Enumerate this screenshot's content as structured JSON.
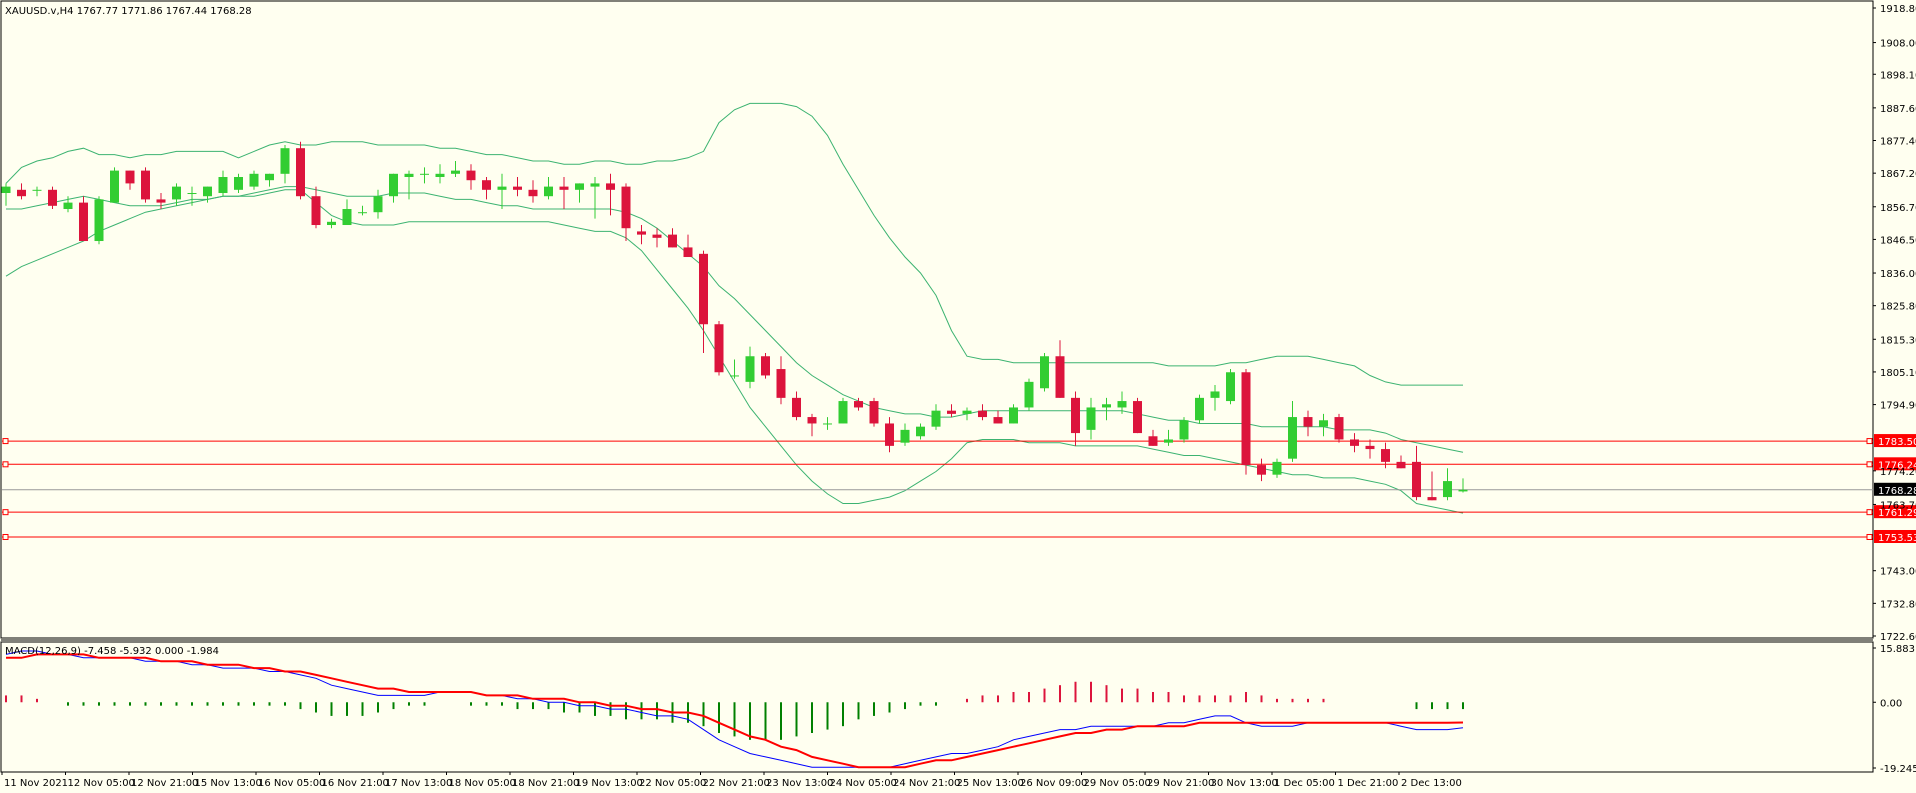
{
  "header": {
    "symbol_info": "XAUUSD.v,H4  1767.77 1771.86 1767.44 1768.28",
    "macd_info": "MACD(12,26,9) -7.458 -5.932 0.000 -1.984"
  },
  "colors": {
    "background": "#fffff0",
    "bull": "#32cd32",
    "bear": "#dc143c",
    "band": "#3cb371",
    "level_line": "#ff0000",
    "macd_main": "#0000ff",
    "macd_signal": "#ff0000",
    "hist_up": "#dc143c",
    "hist_down": "#008000"
  },
  "chart_data": [
    {
      "type": "candlestick",
      "title": "XAUUSD.v,H4",
      "ylim": [
        1722.6,
        1918.8
      ],
      "y_ticks": [
        "1918.80",
        "1908.00",
        "1898.10",
        "1887.60",
        "1877.40",
        "1867.20",
        "1856.70",
        "1846.50",
        "1836.00",
        "1825.80",
        "1815.30",
        "1805.10",
        "1794.90",
        "1774.20",
        "1763.70",
        "1743.00",
        "1732.80",
        "1722.60"
      ],
      "x_ticks": [
        "11 Nov 2021",
        "12 Nov 05:00",
        "12 Nov 21:00",
        "15 Nov 13:00",
        "16 Nov 05:00",
        "16 Nov 21:00",
        "17 Nov 13:00",
        "18 Nov 05:00",
        "18 Nov 21:00",
        "19 Nov 13:00",
        "22 Nov 05:00",
        "22 Nov 21:00",
        "23 Nov 13:00",
        "24 Nov 05:00",
        "24 Nov 21:00",
        "25 Nov 13:00",
        "26 Nov 09:00",
        "29 Nov 05:00",
        "29 Nov 21:00",
        "30 Nov 13:00",
        "1 Dec 05:00",
        "1 Dec 21:00",
        "2 Dec 13:00"
      ],
      "candles": [
        [
          1861,
          1864,
          1857,
          1863
        ],
        [
          1862,
          1864,
          1859,
          1860
        ],
        [
          1862,
          1863,
          1860,
          1862
        ],
        [
          1862,
          1863,
          1856,
          1857
        ],
        [
          1856,
          1860,
          1855,
          1858
        ],
        [
          1858,
          1860,
          1847,
          1846
        ],
        [
          1846,
          1860,
          1845,
          1859
        ],
        [
          1858,
          1869,
          1858,
          1868
        ],
        [
          1868,
          1868,
          1862,
          1864
        ],
        [
          1868,
          1869,
          1858,
          1859
        ],
        [
          1859,
          1861,
          1856,
          1858
        ],
        [
          1859,
          1864,
          1857,
          1863
        ],
        [
          1861,
          1863,
          1857,
          1861
        ],
        [
          1860,
          1863,
          1858,
          1863
        ],
        [
          1861,
          1868,
          1860,
          1866
        ],
        [
          1862,
          1867,
          1861,
          1866
        ],
        [
          1863,
          1868,
          1862,
          1867
        ],
        [
          1865,
          1867,
          1863,
          1867
        ],
        [
          1867,
          1876,
          1864,
          1875
        ],
        [
          1875,
          1877,
          1859,
          1860
        ],
        [
          1860,
          1863,
          1850,
          1851
        ],
        [
          1851,
          1853,
          1850,
          1852
        ],
        [
          1851,
          1859,
          1851,
          1856
        ],
        [
          1855,
          1857,
          1854,
          1855
        ],
        [
          1855,
          1862,
          1853,
          1860
        ],
        [
          1860,
          1867,
          1858,
          1867
        ],
        [
          1866,
          1868,
          1859,
          1867
        ],
        [
          1867,
          1869,
          1864,
          1867
        ],
        [
          1866,
          1870,
          1864,
          1867
        ],
        [
          1867,
          1871,
          1866,
          1868
        ],
        [
          1868,
          1870,
          1862,
          1865
        ],
        [
          1865,
          1866,
          1859,
          1862
        ],
        [
          1862,
          1867,
          1856,
          1863
        ],
        [
          1863,
          1866,
          1860,
          1862
        ],
        [
          1862,
          1865,
          1858,
          1860
        ],
        [
          1860,
          1866,
          1859,
          1863
        ],
        [
          1863,
          1866,
          1856,
          1862
        ],
        [
          1862,
          1864,
          1858,
          1864
        ],
        [
          1863,
          1866,
          1853,
          1864
        ],
        [
          1864,
          1867,
          1854,
          1862
        ],
        [
          1863,
          1864,
          1846,
          1850
        ],
        [
          1849,
          1851,
          1845,
          1848
        ],
        [
          1848,
          1850,
          1844,
          1847
        ],
        [
          1848,
          1850,
          1844,
          1844
        ],
        [
          1844,
          1848,
          1841,
          1841
        ],
        [
          1842,
          1843,
          1811,
          1820
        ],
        [
          1820,
          1821,
          1804,
          1805
        ],
        [
          1804,
          1809,
          1803,
          1804
        ],
        [
          1802,
          1813,
          1800,
          1810
        ],
        [
          1810,
          1811,
          1803,
          1804
        ],
        [
          1806,
          1810,
          1795,
          1797
        ],
        [
          1797,
          1799,
          1790,
          1791
        ],
        [
          1791,
          1792,
          1785,
          1789
        ],
        [
          1789,
          1791,
          1787,
          1789
        ],
        [
          1789,
          1797,
          1789,
          1796
        ],
        [
          1796,
          1797,
          1793,
          1794
        ],
        [
          1796,
          1797,
          1788,
          1789
        ],
        [
          1789,
          1791,
          1780,
          1782
        ],
        [
          1783,
          1789,
          1782,
          1787
        ],
        [
          1785,
          1789,
          1784,
          1788
        ],
        [
          1788,
          1795,
          1787,
          1793
        ],
        [
          1793,
          1795,
          1791,
          1792
        ],
        [
          1792,
          1794,
          1790,
          1793
        ],
        [
          1793,
          1795,
          1790,
          1791
        ],
        [
          1791,
          1793,
          1789,
          1789
        ],
        [
          1789,
          1795,
          1789,
          1794
        ],
        [
          1794,
          1803,
          1793,
          1802
        ],
        [
          1800,
          1811,
          1799,
          1810
        ],
        [
          1810,
          1815,
          1797,
          1797
        ],
        [
          1797,
          1799,
          1782,
          1786
        ],
        [
          1787,
          1797,
          1784,
          1794
        ],
        [
          1794,
          1797,
          1790,
          1795
        ],
        [
          1794,
          1799,
          1792,
          1796
        ],
        [
          1796,
          1797,
          1786,
          1786
        ],
        [
          1785,
          1787,
          1782,
          1782
        ],
        [
          1783,
          1787,
          1782,
          1784
        ],
        [
          1784,
          1791,
          1783,
          1790
        ],
        [
          1790,
          1798,
          1789,
          1797
        ],
        [
          1797,
          1801,
          1793,
          1799
        ],
        [
          1796,
          1806,
          1795,
          1805
        ],
        [
          1805,
          1806,
          1773,
          1776
        ],
        [
          1776,
          1778,
          1771,
          1773
        ],
        [
          1773,
          1778,
          1772,
          1777
        ],
        [
          1778,
          1796,
          1777,
          1791
        ],
        [
          1791,
          1793,
          1785,
          1788
        ],
        [
          1788,
          1792,
          1785,
          1790
        ],
        [
          1791,
          1792,
          1783,
          1784
        ],
        [
          1784,
          1786,
          1780,
          1782
        ],
        [
          1782,
          1784,
          1778,
          1781
        ],
        [
          1781,
          1783,
          1775,
          1777
        ],
        [
          1777,
          1779,
          1775,
          1775
        ],
        [
          1777,
          1782,
          1765,
          1766
        ],
        [
          1766,
          1774,
          1765,
          1765
        ],
        [
          1766,
          1775,
          1765,
          1771
        ],
        [
          1767.77,
          1771.86,
          1767.44,
          1768.28
        ]
      ],
      "bollinger": {
        "upper": [
          1864,
          1869,
          1871,
          1872,
          1874,
          1875,
          1873,
          1873,
          1872,
          1873,
          1873,
          1874,
          1874,
          1874,
          1874,
          1872,
          1874,
          1876,
          1877,
          1876,
          1876,
          1877,
          1877,
          1877,
          1876,
          1876,
          1876,
          1876,
          1875,
          1875,
          1874,
          1873,
          1873,
          1872,
          1871,
          1871,
          1870,
          1870,
          1871,
          1871,
          1870,
          1870,
          1871,
          1871,
          1872,
          1874,
          1883,
          1887,
          1889,
          1889,
          1889,
          1888,
          1885,
          1879,
          1870,
          1862,
          1854,
          1847,
          1841,
          1836,
          1829,
          1818,
          1810,
          1809,
          1809,
          1808,
          1808,
          1808,
          1808,
          1808,
          1808,
          1808,
          1808,
          1808,
          1808,
          1807,
          1807,
          1807,
          1807,
          1808,
          1808,
          1809,
          1810,
          1810,
          1810,
          1809,
          1808,
          1807,
          1804,
          1802,
          1801,
          1801,
          1801,
          1801,
          1801
        ],
        "middle": [
          1856,
          1856,
          1857,
          1858,
          1859,
          1860,
          1859,
          1858,
          1857,
          1857,
          1857,
          1858,
          1859,
          1859,
          1860,
          1860,
          1861,
          1862,
          1863,
          1863,
          1862,
          1861,
          1860,
          1860,
          1860,
          1861,
          1861,
          1861,
          1860,
          1859,
          1859,
          1858,
          1857,
          1857,
          1856,
          1856,
          1856,
          1856,
          1856,
          1856,
          1855,
          1853,
          1850,
          1846,
          1842,
          1838,
          1832,
          1828,
          1823,
          1818,
          1813,
          1808,
          1804,
          1801,
          1798,
          1796,
          1794,
          1793,
          1792,
          1792,
          1791,
          1791,
          1792,
          1793,
          1793,
          1793,
          1793,
          1793,
          1793,
          1793,
          1793,
          1793,
          1793,
          1792,
          1791,
          1790,
          1790,
          1789,
          1789,
          1789,
          1789,
          1788,
          1788,
          1788,
          1788,
          1788,
          1787,
          1787,
          1787,
          1786,
          1784,
          1783,
          1782,
          1781,
          1780
        ],
        "lower": [
          1835,
          1838,
          1840,
          1842,
          1844,
          1846,
          1849,
          1851,
          1853,
          1855,
          1856,
          1857,
          1858,
          1859,
          1860,
          1860,
          1860,
          1861,
          1862,
          1862,
          1858,
          1854,
          1852,
          1851,
          1851,
          1851,
          1852,
          1852,
          1852,
          1852,
          1852,
          1852,
          1852,
          1852,
          1852,
          1852,
          1851,
          1850,
          1849,
          1849,
          1847,
          1843,
          1837,
          1831,
          1825,
          1818,
          1810,
          1802,
          1794,
          1788,
          1782,
          1776,
          1771,
          1767,
          1764,
          1764,
          1765,
          1766,
          1768,
          1771,
          1774,
          1778,
          1783,
          1784,
          1784,
          1784,
          1783,
          1783,
          1783,
          1782,
          1782,
          1782,
          1782,
          1782,
          1781,
          1780,
          1779,
          1779,
          1778,
          1777,
          1776,
          1775,
          1774,
          1773,
          1773,
          1772,
          1772,
          1772,
          1771,
          1770,
          1768,
          1764,
          1763,
          1762,
          1761
        ]
      },
      "horizontal_levels": [
        {
          "value": 1783.5,
          "label": "1783.50",
          "color": "#ff0000"
        },
        {
          "value": 1776.24,
          "label": "1776.24",
          "color": "#ff0000"
        },
        {
          "value": 1761.29,
          "label": "1761.29",
          "color": "#ff0000"
        },
        {
          "value": 1753.53,
          "label": "1753.53",
          "color": "#ff0000"
        }
      ],
      "current_price": {
        "value": 1768.28,
        "label": "1768.28"
      }
    },
    {
      "type": "macd",
      "ylim": [
        -19.245,
        15.883
      ],
      "y_ticks": [
        "15.883",
        "0.00",
        "-19.245"
      ],
      "histogram": [
        2,
        2,
        1,
        0,
        -1,
        -1,
        -1,
        -1,
        -1,
        -1,
        -1,
        -1,
        -1,
        -1,
        -1,
        -1,
        -1,
        -1,
        -1,
        -2,
        -3,
        -4,
        -4,
        -4,
        -3,
        -2,
        -1,
        -1,
        0,
        0,
        -1,
        -1,
        -1,
        -2,
        -2,
        -2,
        -3,
        -3,
        -4,
        -4,
        -5,
        -5,
        -5,
        -6,
        -6,
        -7,
        -9,
        -10,
        -11,
        -11,
        -11,
        -10,
        -9,
        -8,
        -7,
        -5,
        -4,
        -3,
        -2,
        -1,
        -1,
        0,
        1,
        2,
        2,
        3,
        3,
        4,
        5,
        6,
        6,
        5,
        4,
        4,
        3,
        3,
        2,
        2,
        2,
        2,
        3,
        2,
        1,
        1,
        1,
        1,
        0,
        0,
        0,
        0,
        0,
        -2,
        -2,
        -2,
        -2
      ],
      "main": [
        14,
        15,
        15,
        14,
        14,
        13,
        13,
        13,
        13,
        12,
        12,
        12,
        11,
        11,
        10,
        10,
        10,
        9,
        9,
        8,
        7,
        5,
        4,
        3,
        2,
        2,
        2,
        2,
        3,
        3,
        3,
        2,
        2,
        1,
        1,
        0,
        0,
        -1,
        -1,
        -2,
        -2,
        -3,
        -4,
        -4,
        -5,
        -8,
        -11,
        -13,
        -15,
        -16,
        -17,
        -18,
        -19,
        -19,
        -19,
        -19,
        -19,
        -19,
        -18,
        -17,
        -16,
        -15,
        -15,
        -14,
        -13,
        -11,
        -10,
        -9,
        -8,
        -8,
        -7,
        -7,
        -7,
        -7,
        -7,
        -6,
        -6,
        -5,
        -4,
        -4,
        -6,
        -7,
        -7,
        -7,
        -6,
        -6,
        -6,
        -6,
        -6,
        -6,
        -7,
        -8,
        -8,
        -8,
        -7.458
      ],
      "signal": [
        13,
        13,
        14,
        14,
        14,
        14,
        13,
        13,
        13,
        13,
        12,
        12,
        12,
        11,
        11,
        11,
        10,
        10,
        9,
        9,
        8,
        7,
        6,
        5,
        4,
        4,
        3,
        3,
        3,
        3,
        3,
        2,
        2,
        2,
        1,
        1,
        1,
        0,
        0,
        -1,
        -1,
        -2,
        -2,
        -3,
        -3,
        -4,
        -6,
        -8,
        -10,
        -11,
        -13,
        -14,
        -16,
        -17,
        -18,
        -19,
        -19,
        -19,
        -19,
        -18,
        -17,
        -17,
        -16,
        -15,
        -14,
        -13,
        -12,
        -11,
        -10,
        -9,
        -9,
        -8,
        -8,
        -7,
        -7,
        -7,
        -7,
        -6,
        -6,
        -6,
        -6,
        -6,
        -6,
        -6,
        -6,
        -6,
        -6,
        -6,
        -6,
        -6,
        -6,
        -6,
        -6,
        -6,
        -5.932
      ]
    }
  ]
}
